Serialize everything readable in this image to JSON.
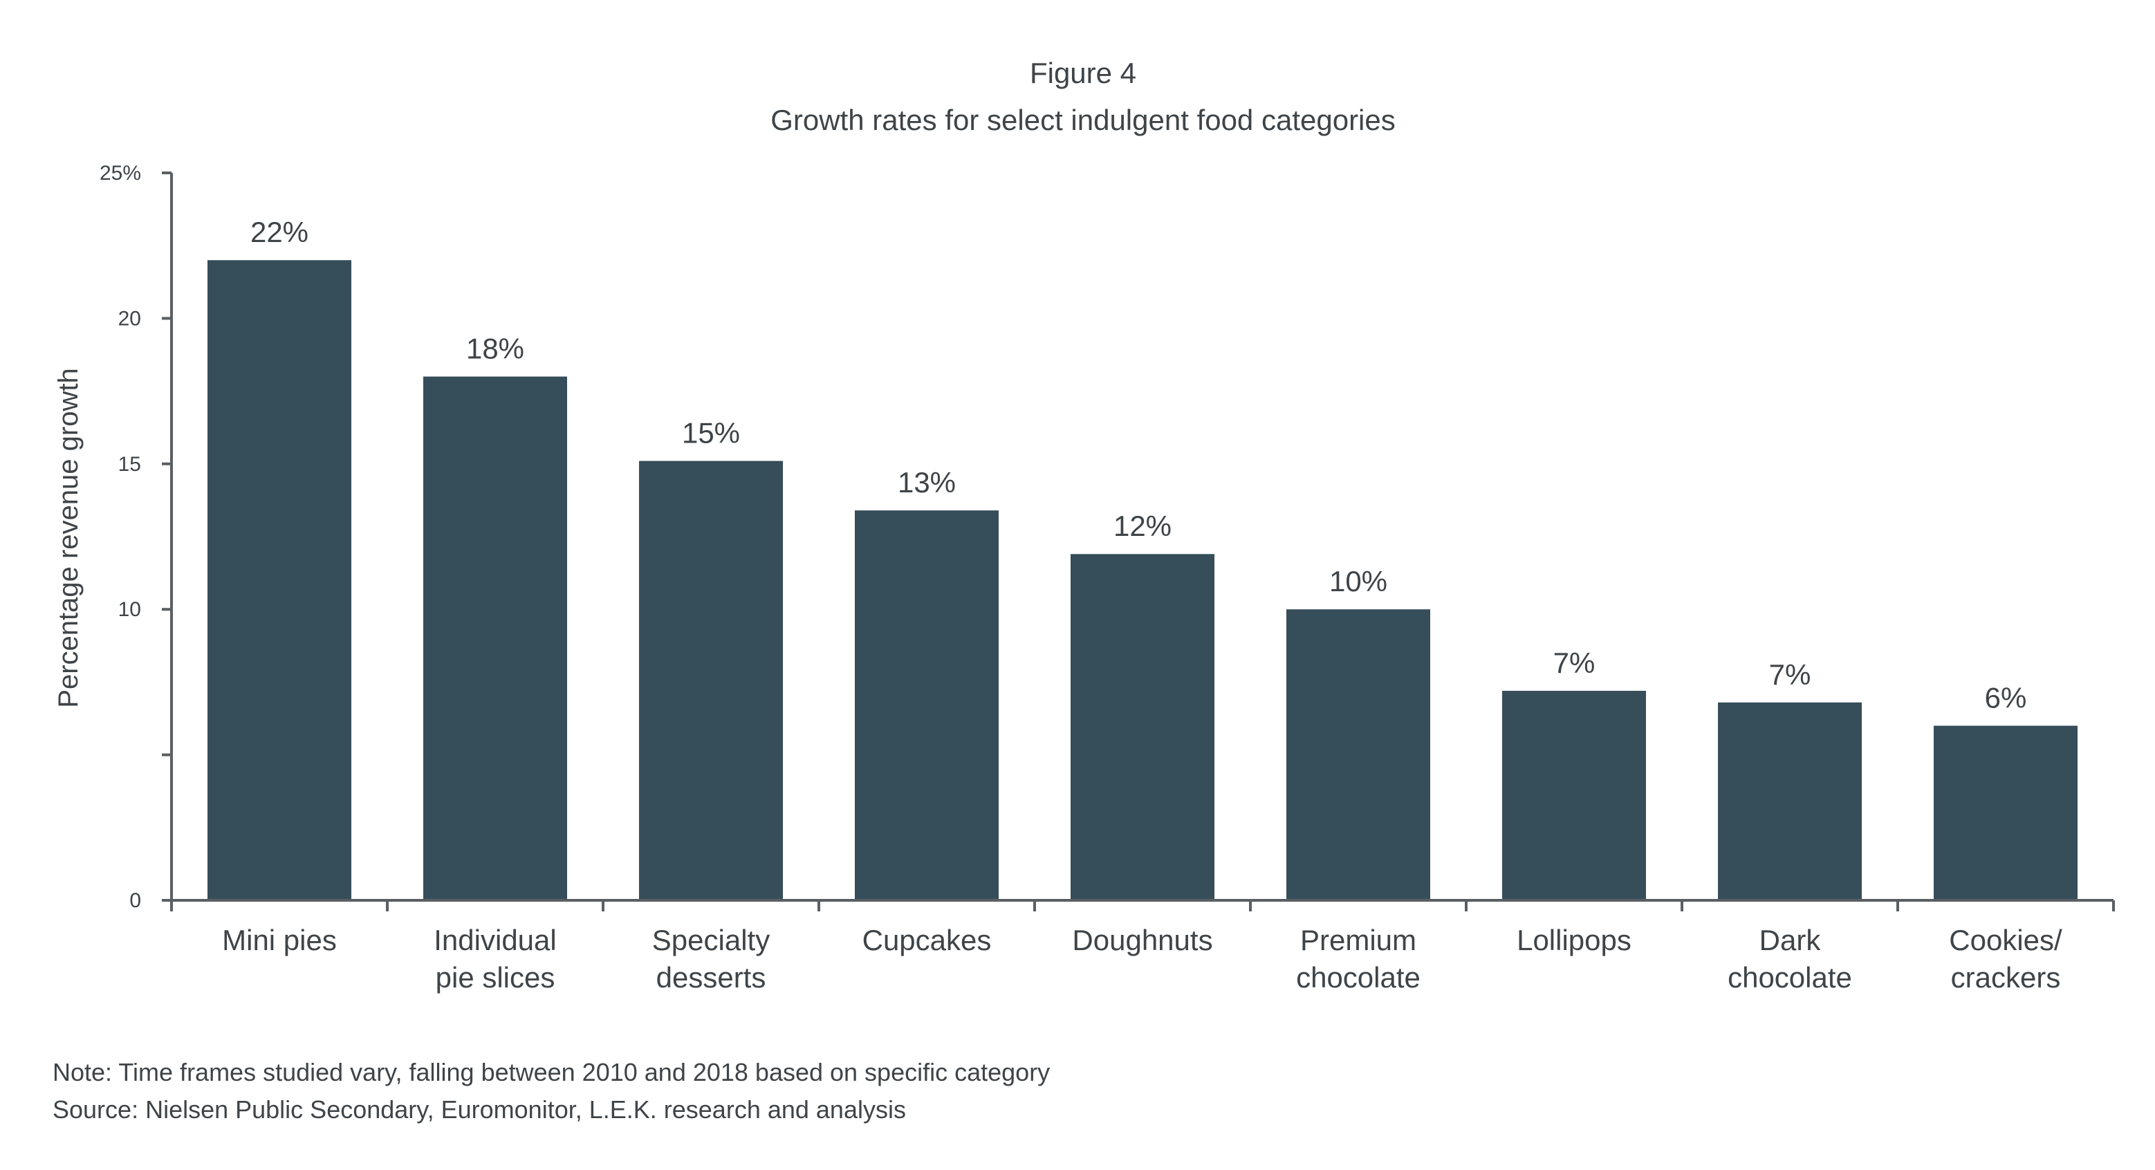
{
  "figure": {
    "label": "Figure 4",
    "title": "Growth rates for select indulgent food categories"
  },
  "chart_data": {
    "type": "bar",
    "title": "Growth rates for select indulgent food categories",
    "xlabel": "",
    "ylabel": "Percentage revenue growth",
    "ylim": [
      0,
      25
    ],
    "yticks": [
      0,
      5,
      10,
      15,
      20,
      25
    ],
    "ytick_labels": [
      "0",
      "",
      "10",
      "15",
      "20",
      "25%"
    ],
    "categories": [
      [
        "Mini pies"
      ],
      [
        "Individual",
        "pie slices"
      ],
      [
        "Specialty",
        "desserts"
      ],
      [
        "Cupcakes"
      ],
      [
        "Doughnuts"
      ],
      [
        "Premium",
        "chocolate"
      ],
      [
        "Lollipops"
      ],
      [
        "Dark",
        "chocolate"
      ],
      [
        "Cookies/",
        "crackers"
      ]
    ],
    "values": [
      22,
      18,
      15.1,
      13.4,
      11.9,
      10,
      7.2,
      6.8,
      6
    ],
    "data_labels": [
      "22%",
      "18%",
      "15%",
      "13%",
      "12%",
      "10%",
      "7%",
      "7%",
      "6%"
    ],
    "bar_color": "#364d5a",
    "axis_color": "#5a5f63",
    "grid": false,
    "legend": "none"
  },
  "notes": {
    "note": "Note: Time frames studied vary, falling between 2010 and 2018 based on specific category",
    "source": "Source: Nielsen Public Secondary, Euromonitor, L.E.K. research and analysis"
  }
}
